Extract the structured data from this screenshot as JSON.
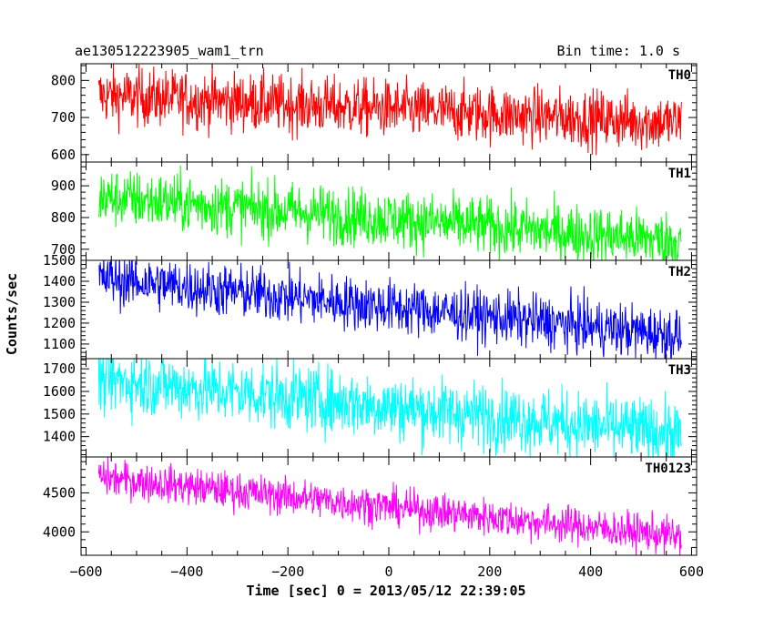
{
  "header": {
    "left_title": "ae130512223905_wam1_trn",
    "right_title": "Bin time: 1.0 s"
  },
  "chart_data": {
    "type": "line",
    "xlabel": "Time [sec] 0 = 2013/05/12 22:39:05",
    "ylabel": "Counts/sec",
    "xlim": [
      -610,
      610
    ],
    "xticks": [
      -600,
      -400,
      -200,
      0,
      200,
      400,
      600
    ],
    "xtick_labels": [
      "−600",
      "−400",
      "−200",
      "0",
      "200",
      "400",
      "600"
    ],
    "x_start": -575,
    "x_end": 580,
    "x_step": 1,
    "series": [
      {
        "name": "TH0",
        "color": "#ff0000",
        "ylim": [
          580,
          845
        ],
        "yticks": [
          600,
          700,
          800
        ],
        "trend_start": 760,
        "trend_end": 685,
        "noise": 85,
        "y_min": 585
      },
      {
        "name": "TH1",
        "color": "#00ff00",
        "ylim": [
          665,
          975
        ],
        "yticks": [
          700,
          800,
          900
        ],
        "trend_start": 865,
        "trend_end": 725,
        "noise": 100
      },
      {
        "name": "TH2",
        "color": "#0000ff",
        "ylim": [
          1030,
          1500
        ],
        "yticks": [
          1100,
          1200,
          1300,
          1400,
          1500
        ],
        "trend_start": 1415,
        "trend_end": 1140,
        "noise": 140
      },
      {
        "name": "TH3",
        "color": "#00ffff",
        "ylim": [
          1310,
          1745
        ],
        "yticks": [
          1400,
          1500,
          1600,
          1700
        ],
        "trend_start": 1655,
        "trend_end": 1410,
        "noise": 160
      },
      {
        "name": "TH0123",
        "color": "#ff00ff",
        "ylim": [
          3700,
          4960
        ],
        "yticks": [
          4000,
          4500
        ],
        "trend_start": 4700,
        "trend_end": 3940,
        "noise": 260
      }
    ]
  }
}
